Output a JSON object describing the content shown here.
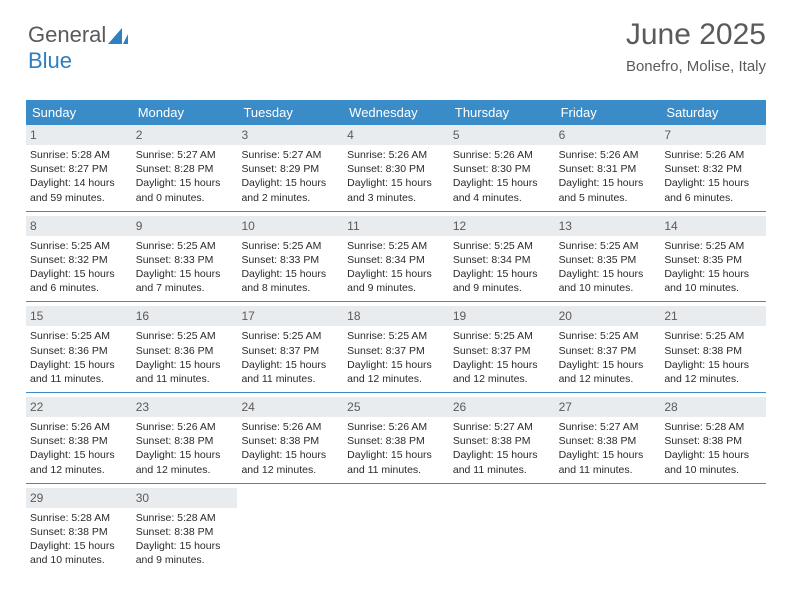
{
  "logo": {
    "textGray": "General",
    "textBlue": "Blue",
    "iconColor": "#2f7fc1"
  },
  "header": {
    "title": "June 2025",
    "location": "Bonefro, Molise, Italy"
  },
  "style": {
    "headerBg": "#3a8cc9",
    "headerColor": "#ffffff",
    "dayNumBg": "#e9ecef",
    "textColor": "#2a2a2a",
    "borderColor": "#3a8cc9",
    "pageBg": "#ffffff",
    "titleColor": "#5a5a5a",
    "titleFontSize": 30,
    "locationFontSize": 15,
    "headerFontSize": 13,
    "dayNumFontSize": 12,
    "bodyFontSize": 10.5
  },
  "calendar": {
    "columns": [
      "Sunday",
      "Monday",
      "Tuesday",
      "Wednesday",
      "Thursday",
      "Friday",
      "Saturday"
    ],
    "weeks": [
      [
        {
          "n": "1",
          "sr": "5:28 AM",
          "ss": "8:27 PM",
          "dl": "14 hours and 59 minutes."
        },
        {
          "n": "2",
          "sr": "5:27 AM",
          "ss": "8:28 PM",
          "dl": "15 hours and 0 minutes."
        },
        {
          "n": "3",
          "sr": "5:27 AM",
          "ss": "8:29 PM",
          "dl": "15 hours and 2 minutes."
        },
        {
          "n": "4",
          "sr": "5:26 AM",
          "ss": "8:30 PM",
          "dl": "15 hours and 3 minutes."
        },
        {
          "n": "5",
          "sr": "5:26 AM",
          "ss": "8:30 PM",
          "dl": "15 hours and 4 minutes."
        },
        {
          "n": "6",
          "sr": "5:26 AM",
          "ss": "8:31 PM",
          "dl": "15 hours and 5 minutes."
        },
        {
          "n": "7",
          "sr": "5:26 AM",
          "ss": "8:32 PM",
          "dl": "15 hours and 6 minutes."
        }
      ],
      [
        {
          "n": "8",
          "sr": "5:25 AM",
          "ss": "8:32 PM",
          "dl": "15 hours and 6 minutes."
        },
        {
          "n": "9",
          "sr": "5:25 AM",
          "ss": "8:33 PM",
          "dl": "15 hours and 7 minutes."
        },
        {
          "n": "10",
          "sr": "5:25 AM",
          "ss": "8:33 PM",
          "dl": "15 hours and 8 minutes."
        },
        {
          "n": "11",
          "sr": "5:25 AM",
          "ss": "8:34 PM",
          "dl": "15 hours and 9 minutes."
        },
        {
          "n": "12",
          "sr": "5:25 AM",
          "ss": "8:34 PM",
          "dl": "15 hours and 9 minutes."
        },
        {
          "n": "13",
          "sr": "5:25 AM",
          "ss": "8:35 PM",
          "dl": "15 hours and 10 minutes."
        },
        {
          "n": "14",
          "sr": "5:25 AM",
          "ss": "8:35 PM",
          "dl": "15 hours and 10 minutes."
        }
      ],
      [
        {
          "n": "15",
          "sr": "5:25 AM",
          "ss": "8:36 PM",
          "dl": "15 hours and 11 minutes."
        },
        {
          "n": "16",
          "sr": "5:25 AM",
          "ss": "8:36 PM",
          "dl": "15 hours and 11 minutes."
        },
        {
          "n": "17",
          "sr": "5:25 AM",
          "ss": "8:37 PM",
          "dl": "15 hours and 11 minutes."
        },
        {
          "n": "18",
          "sr": "5:25 AM",
          "ss": "8:37 PM",
          "dl": "15 hours and 12 minutes."
        },
        {
          "n": "19",
          "sr": "5:25 AM",
          "ss": "8:37 PM",
          "dl": "15 hours and 12 minutes."
        },
        {
          "n": "20",
          "sr": "5:25 AM",
          "ss": "8:37 PM",
          "dl": "15 hours and 12 minutes."
        },
        {
          "n": "21",
          "sr": "5:25 AM",
          "ss": "8:38 PM",
          "dl": "15 hours and 12 minutes."
        }
      ],
      [
        {
          "n": "22",
          "sr": "5:26 AM",
          "ss": "8:38 PM",
          "dl": "15 hours and 12 minutes."
        },
        {
          "n": "23",
          "sr": "5:26 AM",
          "ss": "8:38 PM",
          "dl": "15 hours and 12 minutes."
        },
        {
          "n": "24",
          "sr": "5:26 AM",
          "ss": "8:38 PM",
          "dl": "15 hours and 12 minutes."
        },
        {
          "n": "25",
          "sr": "5:26 AM",
          "ss": "8:38 PM",
          "dl": "15 hours and 11 minutes."
        },
        {
          "n": "26",
          "sr": "5:27 AM",
          "ss": "8:38 PM",
          "dl": "15 hours and 11 minutes."
        },
        {
          "n": "27",
          "sr": "5:27 AM",
          "ss": "8:38 PM",
          "dl": "15 hours and 11 minutes."
        },
        {
          "n": "28",
          "sr": "5:28 AM",
          "ss": "8:38 PM",
          "dl": "15 hours and 10 minutes."
        }
      ],
      [
        {
          "n": "29",
          "sr": "5:28 AM",
          "ss": "8:38 PM",
          "dl": "15 hours and 10 minutes."
        },
        {
          "n": "30",
          "sr": "5:28 AM",
          "ss": "8:38 PM",
          "dl": "15 hours and 9 minutes."
        },
        null,
        null,
        null,
        null,
        null
      ]
    ],
    "labels": {
      "sunrise": "Sunrise:",
      "sunset": "Sunset:",
      "daylight": "Daylight:"
    }
  }
}
